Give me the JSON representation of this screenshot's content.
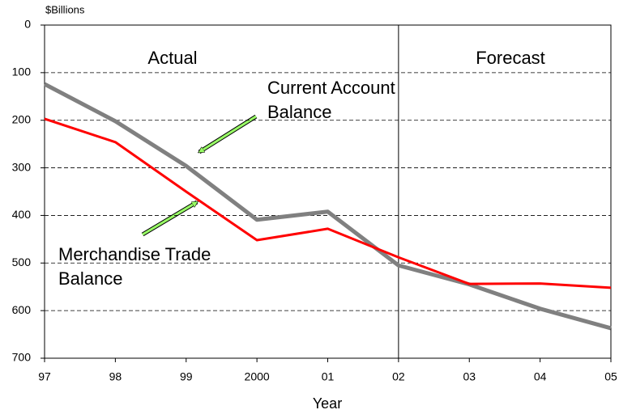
{
  "chart_data": {
    "type": "line",
    "y_unit_label": "$Billions",
    "x_label": "Year",
    "categories": [
      "97",
      "98",
      "99",
      "2000",
      "01",
      "02",
      "03",
      "04",
      "05"
    ],
    "series": [
      {
        "color": "#808080",
        "values": [
          124,
          202,
          296,
          409,
          392,
          505,
          545,
          596,
          637
        ]
      },
      {
        "color": "#ff0000",
        "values": [
          197,
          246,
          350,
          452,
          428,
          488,
          544,
          543,
          552
        ]
      }
    ],
    "ylim": [
      0,
      700
    ],
    "y_inverted": true,
    "yticks": [
      0,
      100,
      200,
      300,
      400,
      500,
      600,
      700
    ],
    "grid": true,
    "divider": "02",
    "period_labels": [
      "Actual",
      "Forecast"
    ],
    "annotations": [
      {
        "lines": [
          "Current Account",
          "Balance"
        ]
      },
      {
        "lines": [
          "Merchandise Trade",
          "Balance"
        ]
      }
    ]
  }
}
